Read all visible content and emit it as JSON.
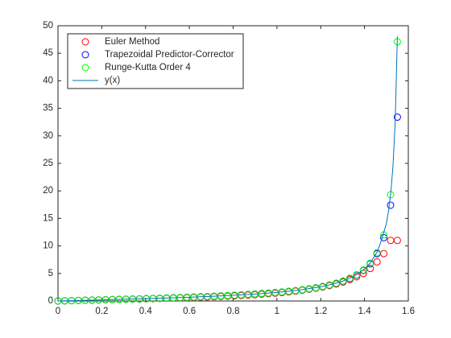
{
  "chart_data": {
    "type": "scatter",
    "x": [
      0,
      0.031,
      0.062,
      0.093,
      0.124,
      0.155,
      0.186,
      0.217,
      0.248,
      0.279,
      0.31,
      0.341,
      0.372,
      0.403,
      0.434,
      0.465,
      0.496,
      0.527,
      0.558,
      0.589,
      0.62,
      0.651,
      0.682,
      0.713,
      0.744,
      0.775,
      0.806,
      0.837,
      0.868,
      0.899,
      0.93,
      0.961,
      0.992,
      1.023,
      1.054,
      1.085,
      1.116,
      1.147,
      1.178,
      1.209,
      1.24,
      1.271,
      1.302,
      1.333,
      1.364,
      1.395,
      1.426,
      1.457,
      1.488,
      1.519,
      1.55
    ],
    "series": [
      {
        "name": "Euler Method",
        "color": "#ff0000",
        "marker": "circle",
        "values": [
          0,
          0.031,
          0.062,
          0.093,
          0.124,
          0.155,
          0.185,
          0.215,
          0.25,
          0.28,
          0.31,
          0.34,
          0.37,
          0.4,
          0.43,
          0.46,
          0.495,
          0.53,
          0.565,
          0.605,
          0.645,
          0.69,
          0.73,
          0.78,
          0.83,
          0.88,
          0.94,
          1.0,
          1.07,
          1.15,
          1.23,
          1.32,
          1.42,
          1.53,
          1.66,
          1.8,
          1.96,
          2.13,
          2.33,
          2.55,
          2.8,
          3.1,
          3.45,
          3.9,
          4.4,
          5.0,
          5.9,
          7.1,
          8.6,
          11.0,
          11.0
        ]
      },
      {
        "name": "Trapezoidal Predictor-Corrector",
        "color": "#0000ff",
        "marker": "circle",
        "values": [
          0,
          0.031,
          0.062,
          0.093,
          0.125,
          0.156,
          0.188,
          0.22,
          0.253,
          0.287,
          0.32,
          0.355,
          0.39,
          0.427,
          0.464,
          0.502,
          0.541,
          0.582,
          0.624,
          0.668,
          0.714,
          0.762,
          0.812,
          0.865,
          0.921,
          0.98,
          1.044,
          1.111,
          1.183,
          1.261,
          1.344,
          1.43,
          1.53,
          1.63,
          1.75,
          1.88,
          2.03,
          2.2,
          2.4,
          2.62,
          2.89,
          3.2,
          3.6,
          4.08,
          4.7,
          5.55,
          6.75,
          8.6,
          11.5,
          17.4,
          33.4
        ]
      },
      {
        "name": "Runge-Kutta Order 4",
        "color": "#00ff00",
        "marker": "circle",
        "values": [
          0,
          0.031,
          0.062,
          0.093,
          0.125,
          0.156,
          0.188,
          0.22,
          0.253,
          0.287,
          0.32,
          0.355,
          0.39,
          0.427,
          0.464,
          0.502,
          0.541,
          0.582,
          0.624,
          0.668,
          0.714,
          0.762,
          0.812,
          0.865,
          0.922,
          0.981,
          1.045,
          1.112,
          1.185,
          1.263,
          1.347,
          1.43,
          1.53,
          1.633,
          1.755,
          1.889,
          2.04,
          2.214,
          2.41,
          2.641,
          2.912,
          3.235,
          3.627,
          4.125,
          4.766,
          5.63,
          6.86,
          8.75,
          12.0,
          19.3,
          47.1
        ]
      },
      {
        "name": "y(x)",
        "color": "#0072bd",
        "marker": "line",
        "x": [
          0,
          0.1,
          0.2,
          0.3,
          0.4,
          0.5,
          0.6,
          0.7,
          0.8,
          0.9,
          1.0,
          1.1,
          1.2,
          1.25,
          1.3,
          1.35,
          1.4,
          1.43,
          1.46,
          1.48,
          1.5,
          1.51,
          1.52,
          1.53,
          1.54,
          1.55
        ],
        "values": [
          0,
          0.1,
          0.203,
          0.309,
          0.423,
          0.546,
          0.684,
          0.842,
          1.03,
          1.26,
          1.557,
          1.965,
          2.572,
          3.01,
          3.602,
          4.455,
          5.798,
          7.07,
          9.1,
          11.38,
          14.1,
          16.43,
          19.67,
          24.5,
          32.46,
          48.08
        ]
      }
    ],
    "xlim": [
      0,
      1.6
    ],
    "xticks": [
      0,
      0.2,
      0.4,
      0.6,
      0.8,
      1,
      1.2,
      1.4,
      1.6
    ],
    "ylim": [
      0,
      50
    ],
    "yticks": [
      0,
      5,
      10,
      15,
      20,
      25,
      30,
      35,
      40,
      45,
      50
    ],
    "legend": "upper left",
    "grid": false
  }
}
